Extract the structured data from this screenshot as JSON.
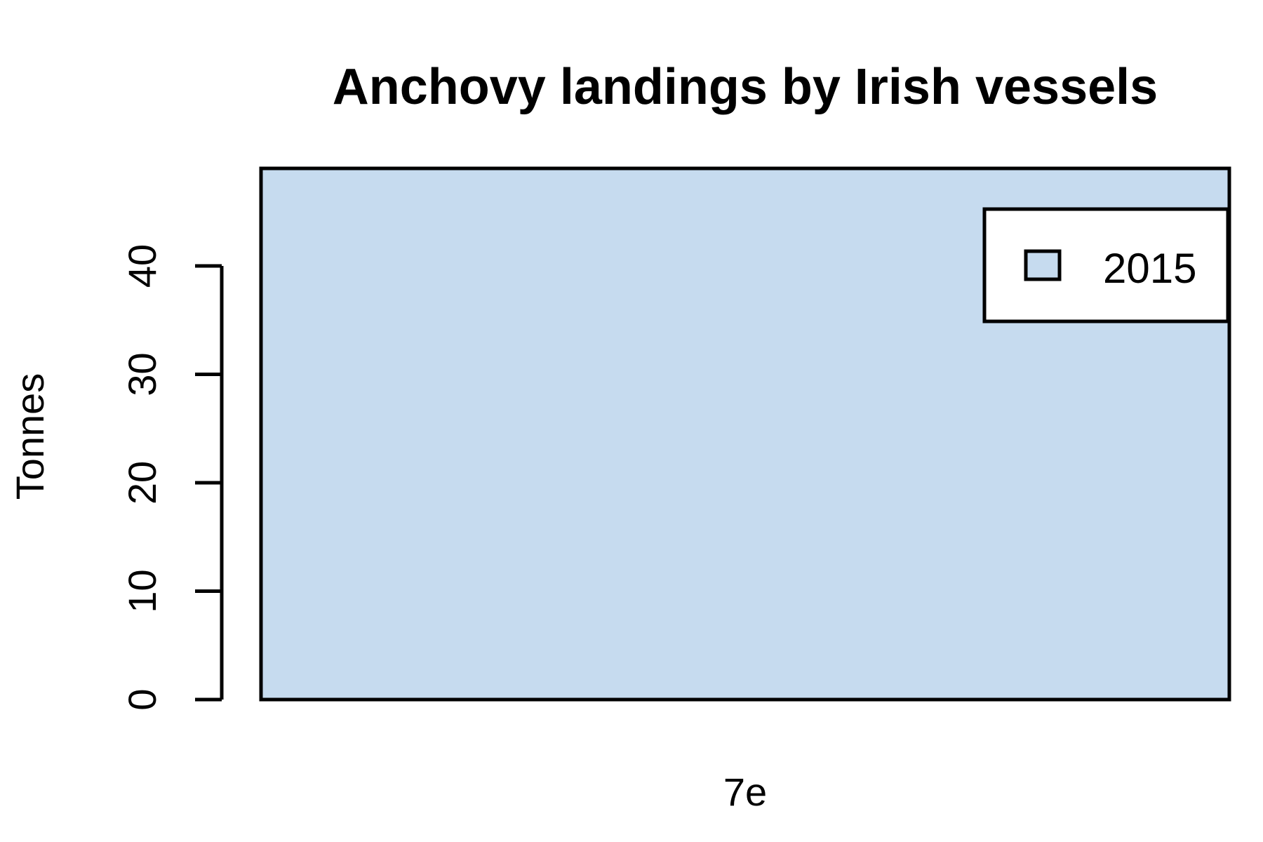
{
  "chart_data": {
    "type": "bar",
    "title": "Anchovy landings by Irish vessels",
    "xlabel": "",
    "ylabel": "Tonnes",
    "categories": [
      "7e"
    ],
    "series": [
      {
        "name": "2015",
        "values": [
          49
        ],
        "color": "#c6dbef"
      }
    ],
    "ylim": [
      0,
      49
    ],
    "yticks": [
      0,
      10,
      20,
      30,
      40
    ],
    "grid": false,
    "legend_position": "top-right"
  }
}
